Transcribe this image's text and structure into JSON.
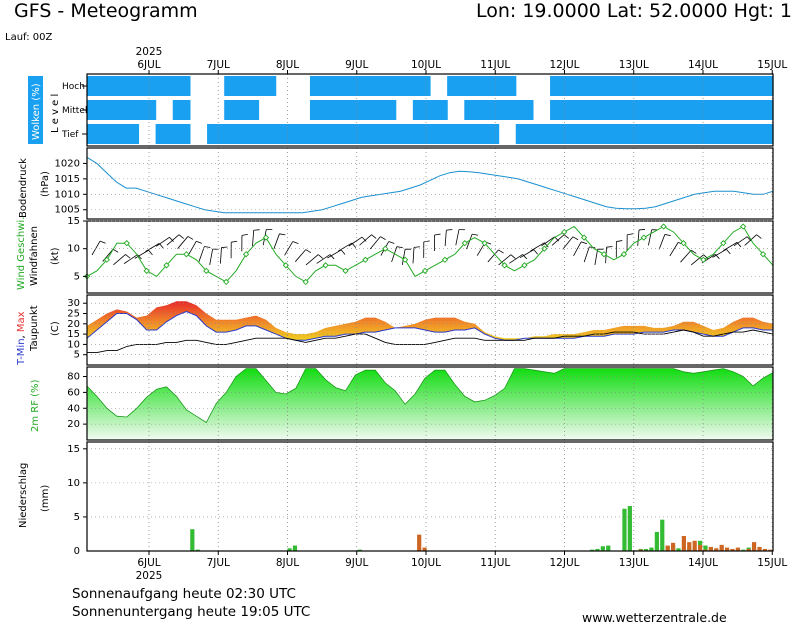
{
  "header": {
    "title": "GFS - Meteogramm",
    "location": "Lon: 19.0000 Lat: 52.0000 Hgt: 1",
    "run": "Lauf: 00Z"
  },
  "footer": {
    "sunrise": "Sonnenaufgang heute 02:30 UTC",
    "sunset": "Sonnenuntergang heute 19:05 UTC",
    "source": "www.wetterzentrale.de"
  },
  "colors": {
    "clouds": "#1aa0f0",
    "pressure": "#1a90d0",
    "windspeed": "#22aa22",
    "windbarbs": "#000000",
    "tmin": "#2a3acc",
    "tmax": "#e83030",
    "dewpoint": "#000000",
    "rh": "#22cc22",
    "precip_rain": "#33bb33",
    "precip_conv": "#cc6622",
    "grid": "#888888"
  },
  "chart_data": [
    {
      "type": "heatmap",
      "name": "clouds",
      "title": "Wolken (%)",
      "ylabel": "Level",
      "levels": [
        "Hoch",
        "Mittel",
        "Tief"
      ],
      "x_start": "2025-07-05 06Z",
      "step_hours": 6,
      "x_tick_labels": [
        "6JUL",
        "7JUL",
        "8JUL",
        "9JUL",
        "10JUL",
        "11JUL",
        "12JUL",
        "13JUL",
        "14JUL",
        "15JUL"
      ],
      "year_label": "2025",
      "rows": {
        "Hoch": [
          1,
          1,
          1,
          1,
          1,
          1,
          0,
          0,
          1,
          1,
          1,
          0,
          0,
          1,
          1,
          1,
          1,
          1,
          1,
          1,
          0,
          1,
          1,
          1,
          1,
          0,
          0,
          1,
          1,
          1,
          1,
          1,
          1,
          1,
          1,
          1,
          1,
          1,
          1,
          1
        ],
        "Mittel": [
          1,
          1,
          1,
          1,
          0,
          1,
          0,
          0,
          1,
          1,
          0,
          0,
          0,
          1,
          1,
          1,
          1,
          1,
          0,
          1,
          1,
          0,
          1,
          1,
          1,
          1,
          0,
          1,
          1,
          1,
          1,
          1,
          1,
          1,
          1,
          1,
          1,
          1,
          1,
          1
        ],
        "Tief": [
          1,
          1,
          1,
          0,
          1,
          1,
          0,
          1,
          1,
          1,
          1,
          1,
          1,
          1,
          1,
          1,
          1,
          1,
          1,
          1,
          1,
          1,
          1,
          1,
          0,
          1,
          1,
          1,
          1,
          1,
          1,
          1,
          1,
          1,
          1,
          1,
          1,
          1,
          1,
          1
        ]
      }
    },
    {
      "type": "line",
      "name": "pressure",
      "ylabel": "Bodendruck (hPa)",
      "ylim": [
        1002,
        1025
      ],
      "yticks": [
        1005,
        1010,
        1015,
        1020
      ],
      "values": [
        1022,
        1020,
        1017,
        1014,
        1012,
        1012,
        1011,
        1010,
        1009,
        1008,
        1007,
        1006,
        1005,
        1004.5,
        1004,
        1004,
        1004,
        1004,
        1004,
        1004,
        1004,
        1004,
        1004,
        1004.5,
        1005,
        1006,
        1007,
        1008,
        1009,
        1009.5,
        1010,
        1010.5,
        1011,
        1012,
        1013,
        1014.5,
        1016,
        1017,
        1017.5,
        1017.3,
        1017,
        1016.5,
        1016,
        1015.5,
        1015,
        1014,
        1013,
        1012,
        1011,
        1010,
        1009,
        1008,
        1007,
        1006,
        1005.5,
        1005.3,
        1005.3,
        1005.5,
        1006,
        1007,
        1008,
        1009,
        1010,
        1010.5,
        1011,
        1011,
        1011,
        1010.5,
        1010,
        1010,
        1011
      ]
    },
    {
      "type": "line",
      "name": "wind",
      "ylabel": "Wind Geschwi. Windfahnen (kt)",
      "ylim": [
        2,
        15
      ],
      "yticks": [
        5,
        10,
        15
      ],
      "values": [
        5,
        6,
        8,
        11,
        11,
        9,
        6,
        5,
        7,
        9,
        9,
        8,
        6,
        5,
        4,
        6,
        9,
        11,
        12,
        9,
        7,
        5,
        4,
        6,
        7,
        7,
        6,
        7,
        8,
        9,
        10,
        9,
        8,
        5,
        6,
        7,
        8,
        9,
        11,
        12,
        11,
        9,
        7,
        6,
        7,
        8,
        10,
        12,
        13,
        14,
        12,
        10,
        9,
        8,
        9,
        11,
        12,
        13,
        14,
        13,
        11,
        9,
        8,
        9,
        11,
        13,
        14,
        11,
        9,
        7
      ]
    },
    {
      "type": "area",
      "name": "temperature",
      "ylabel": "T-Min, Max Taupunkt (C)",
      "ylim": [
        0,
        34
      ],
      "yticks": [
        5,
        10,
        15,
        20,
        25,
        30
      ],
      "series": [
        {
          "name": "T-Min",
          "values": [
            13,
            17,
            21,
            25,
            25,
            22,
            17,
            17,
            21,
            24,
            26,
            24,
            19,
            16,
            16,
            17,
            19,
            19,
            17,
            15,
            13,
            12,
            12,
            13,
            14,
            14,
            15,
            15,
            16,
            16,
            17,
            18,
            18,
            18,
            17,
            16,
            16,
            17,
            17,
            18,
            15,
            13,
            12,
            12,
            13,
            13,
            13,
            13,
            13,
            13,
            14,
            14,
            14,
            15,
            15,
            15,
            16,
            16,
            16,
            17,
            17,
            16,
            15,
            14,
            14,
            16,
            18,
            18,
            17,
            17
          ]
        },
        {
          "name": "Max",
          "values": [
            19,
            22,
            25,
            27,
            26,
            23,
            24,
            28,
            29,
            31,
            31,
            29,
            25,
            22,
            22,
            22,
            23,
            24,
            22,
            18,
            16,
            15,
            15,
            16,
            18,
            19,
            20,
            21,
            23,
            23,
            21,
            18,
            19,
            20,
            22,
            23,
            23,
            23,
            21,
            20,
            16,
            14,
            13,
            13,
            13,
            14,
            14,
            15,
            15,
            15,
            16,
            17,
            17,
            18,
            19,
            19,
            19,
            18,
            18,
            19,
            21,
            21,
            19,
            17,
            18,
            21,
            23,
            23,
            21,
            20
          ]
        },
        {
          "name": "Taupunkt",
          "values": [
            6,
            6,
            7,
            7,
            9,
            10,
            10,
            10,
            11,
            11,
            12,
            12,
            11,
            10,
            10,
            11,
            12,
            13,
            13,
            13,
            13,
            12,
            11,
            12,
            13,
            13,
            14,
            15,
            15,
            13,
            11,
            10,
            10,
            10,
            10,
            11,
            12,
            13,
            13,
            13,
            12,
            12,
            12,
            12,
            12,
            13,
            13,
            13,
            14,
            14,
            14,
            15,
            15,
            16,
            16,
            16,
            15,
            15,
            15,
            16,
            17,
            16,
            14,
            14,
            15,
            16,
            16,
            17,
            16,
            15
          ]
        }
      ]
    },
    {
      "type": "area",
      "name": "humidity",
      "ylabel": "2m RF (%)",
      "ylim": [
        0,
        92
      ],
      "yticks": [
        20,
        40,
        60,
        80
      ],
      "values": [
        68,
        55,
        40,
        30,
        29,
        40,
        54,
        64,
        67,
        55,
        38,
        30,
        22,
        46,
        60,
        80,
        90,
        90,
        75,
        60,
        58,
        65,
        90,
        90,
        76,
        66,
        62,
        82,
        88,
        88,
        72,
        62,
        45,
        58,
        78,
        88,
        88,
        70,
        55,
        48,
        50,
        56,
        65,
        90,
        90,
        88,
        86,
        84,
        90,
        90,
        90,
        90,
        90,
        90,
        90,
        90,
        90,
        90,
        90,
        90,
        86,
        84,
        86,
        88,
        90,
        86,
        80,
        68,
        78,
        85
      ]
    },
    {
      "type": "bar",
      "name": "precipitation",
      "ylabel": "Niederschlag (mm)",
      "ylim": [
        0,
        16
      ],
      "yticks": [
        5,
        10,
        15
      ],
      "series": [
        {
          "name": "rain",
          "values": [
            0,
            0,
            0,
            0,
            0,
            0,
            0,
            0,
            0,
            0,
            0,
            0,
            0,
            0,
            0,
            0,
            0,
            0,
            0,
            3.2,
            0.2,
            0,
            0,
            0,
            0,
            0,
            0,
            0,
            0,
            0,
            0,
            0,
            0,
            0,
            0,
            0,
            0,
            0.4,
            0.8,
            0,
            0,
            0,
            0,
            0,
            0,
            0,
            0,
            0,
            0,
            0,
            0.2,
            0,
            0,
            0,
            0,
            0,
            0,
            0,
            0,
            0,
            0,
            0,
            0,
            0,
            0,
            0,
            0,
            0,
            0,
            0,
            0,
            0,
            0,
            0,
            0,
            0,
            0,
            0,
            0,
            0,
            0,
            0,
            0,
            0,
            0,
            0,
            0,
            0,
            0,
            0,
            0,
            0,
            0,
            0.2,
            0.3,
            0.7,
            0.8,
            0,
            0,
            6.2,
            6.6,
            0.1,
            0.3,
            0.3,
            0.5,
            2.8,
            4.6,
            0.6,
            0.8,
            0.4,
            0.2,
            0.5,
            0.2,
            1.5,
            0.8,
            0.5,
            0.3,
            0.2,
            0.1,
            0.1,
            0,
            0.2,
            0.5,
            0.2,
            0.1,
            0,
            0
          ]
        },
        {
          "name": "convective",
          "values": [
            0,
            0,
            0,
            0,
            0,
            0,
            0,
            0,
            0,
            0,
            0,
            0,
            0,
            0,
            0,
            0,
            0,
            0,
            0,
            0,
            0,
            0,
            0,
            0,
            0,
            0,
            0,
            0,
            0,
            0,
            0,
            0,
            0,
            0,
            0,
            0,
            0,
            0,
            0,
            0,
            0,
            0,
            0,
            0,
            0,
            0,
            0,
            0,
            0,
            0,
            0,
            0,
            0,
            0,
            0,
            0,
            0,
            0,
            0,
            0,
            0,
            2.4,
            0.5,
            0,
            0,
            0,
            0,
            0,
            0,
            0,
            0,
            0,
            0,
            0,
            0,
            0,
            0,
            0,
            0,
            0,
            0,
            0,
            0,
            0,
            0,
            0,
            0,
            0,
            0,
            0,
            0,
            0,
            0,
            0,
            0,
            0,
            0,
            0,
            0,
            0,
            0,
            0,
            0.2,
            0.1,
            0,
            0,
            0,
            0.8,
            1.2,
            0,
            2.2,
            1.3,
            1.5,
            0.9,
            0.2,
            0.6,
            0.4,
            0.9,
            0.5,
            0.3,
            0.5,
            0,
            0.3,
            1.3,
            0.6,
            0.3,
            0.2,
            0
          ]
        }
      ]
    }
  ]
}
